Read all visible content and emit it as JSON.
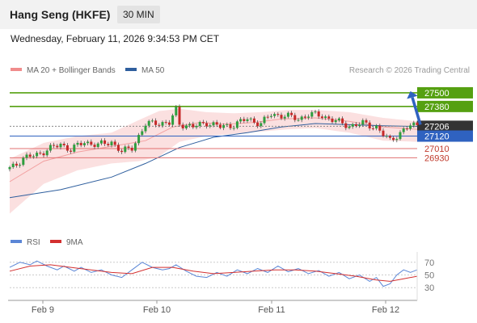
{
  "header": {
    "title": "Hang Seng (HKFE)",
    "interval": "30 MIN"
  },
  "datetime": "Wednesday, February 11, 2026 9:34:53 PM CET",
  "colors": {
    "support_resistance": "#55a011",
    "pivot": "#2f62c0",
    "support": "#e07070",
    "price_tag": "#333333",
    "arrow": "#2f62c0",
    "bullish": "#2e9e3e",
    "bearish": "#c62828",
    "bollinger": "#f7c6c6",
    "ma50": "#2f5f9e",
    "rsi": "#5b86d6",
    "rsi_ma": "#d32f2f"
  },
  "chart_data": {
    "type": "candlestick",
    "legend": [
      {
        "name": "MA 20 + Bollinger Bands",
        "color": "#f08c8c"
      },
      {
        "name": "MA 50",
        "color": "#2f5f9e"
      }
    ],
    "credit": "Research © 2026 Trading Central",
    "y_range": [
      26330,
      27620
    ],
    "x_ticks": [
      "Feb 9",
      "Feb 10",
      "Feb 11",
      "Feb 12"
    ],
    "levels": [
      {
        "label": "27500",
        "value": 27500,
        "kind": "resistance"
      },
      {
        "label": "27380",
        "value": 27380,
        "kind": "resistance"
      },
      {
        "label": "27206",
        "value": 27206,
        "kind": "last"
      },
      {
        "label": "27120",
        "value": 27120,
        "kind": "pivot"
      },
      {
        "label": "27010",
        "value": 27010,
        "kind": "support"
      },
      {
        "label": "26930",
        "value": 26930,
        "kind": "support"
      }
    ],
    "price_path": [
      [
        0,
        26840
      ],
      [
        4,
        26920
      ],
      [
        8,
        26960
      ],
      [
        12,
        27010
      ],
      [
        15,
        27050
      ],
      [
        18,
        27000
      ],
      [
        22,
        27070
      ],
      [
        26,
        27040
      ],
      [
        30,
        27070
      ],
      [
        33,
        26980
      ],
      [
        36,
        27020
      ],
      [
        40,
        27220
      ],
      [
        43,
        27240
      ],
      [
        47,
        27230
      ],
      [
        49,
        27350
      ],
      [
        50,
        27230
      ],
      [
        54,
        27200
      ],
      [
        58,
        27240
      ],
      [
        62,
        27200
      ],
      [
        66,
        27220
      ],
      [
        70,
        27270
      ],
      [
        74,
        27230
      ],
      [
        77,
        27310
      ],
      [
        81,
        27300
      ],
      [
        85,
        27270
      ],
      [
        88,
        27310
      ],
      [
        92,
        27300
      ],
      [
        96,
        27250
      ],
      [
        100,
        27210
      ],
      [
        104,
        27230
      ],
      [
        108,
        27200
      ],
      [
        110,
        27130
      ],
      [
        112,
        27080
      ],
      [
        115,
        27150
      ],
      [
        118,
        27210
      ],
      [
        120,
        27220
      ]
    ],
    "ma20": [
      [
        0,
        26720
      ],
      [
        10,
        26900
      ],
      [
        20,
        26980
      ],
      [
        30,
        27030
      ],
      [
        40,
        27080
      ],
      [
        48,
        27200
      ],
      [
        56,
        27240
      ],
      [
        64,
        27225
      ],
      [
        72,
        27240
      ],
      [
        80,
        27270
      ],
      [
        90,
        27280
      ],
      [
        100,
        27250
      ],
      [
        110,
        27200
      ],
      [
        120,
        27180
      ]
    ],
    "bollinger_upper": [
      [
        0,
        26920
      ],
      [
        10,
        27060
      ],
      [
        20,
        27120
      ],
      [
        30,
        27150
      ],
      [
        38,
        27260
      ],
      [
        44,
        27340
      ],
      [
        50,
        27360
      ],
      [
        58,
        27330
      ],
      [
        66,
        27320
      ],
      [
        74,
        27330
      ],
      [
        82,
        27350
      ],
      [
        90,
        27350
      ],
      [
        100,
        27330
      ],
      [
        110,
        27280
      ],
      [
        120,
        27250
      ]
    ],
    "bollinger_lower": [
      [
        0,
        26440
      ],
      [
        10,
        26700
      ],
      [
        20,
        26820
      ],
      [
        30,
        26880
      ],
      [
        38,
        26900
      ],
      [
        44,
        26940
      ],
      [
        50,
        27070
      ],
      [
        58,
        27120
      ],
      [
        66,
        27140
      ],
      [
        74,
        27160
      ],
      [
        82,
        27180
      ],
      [
        90,
        27190
      ],
      [
        100,
        27150
      ],
      [
        110,
        27080
      ],
      [
        120,
        27070
      ]
    ],
    "ma50": [
      [
        0,
        26580
      ],
      [
        15,
        26650
      ],
      [
        30,
        26760
      ],
      [
        40,
        26880
      ],
      [
        50,
        27020
      ],
      [
        60,
        27110
      ],
      [
        70,
        27150
      ],
      [
        80,
        27200
      ],
      [
        90,
        27230
      ],
      [
        100,
        27220
      ],
      [
        110,
        27210
      ],
      [
        120,
        27205
      ]
    ],
    "rsi_panel": {
      "legend": [
        {
          "name": "RSI",
          "color": "#5b86d6"
        },
        {
          "name": "9MA",
          "color": "#d32f2f"
        }
      ],
      "y_ticks": [
        "70",
        "50",
        "30"
      ],
      "y_range": [
        15,
        85
      ],
      "rsi": [
        [
          0,
          62
        ],
        [
          3,
          70
        ],
        [
          6,
          66
        ],
        [
          8,
          72
        ],
        [
          11,
          64
        ],
        [
          14,
          58
        ],
        [
          16,
          64
        ],
        [
          19,
          56
        ],
        [
          21,
          62
        ],
        [
          24,
          54
        ],
        [
          27,
          58
        ],
        [
          30,
          50
        ],
        [
          33,
          46
        ],
        [
          36,
          58
        ],
        [
          39,
          70
        ],
        [
          42,
          62
        ],
        [
          45,
          58
        ],
        [
          47,
          60
        ],
        [
          49,
          66
        ],
        [
          52,
          56
        ],
        [
          55,
          48
        ],
        [
          58,
          46
        ],
        [
          61,
          54
        ],
        [
          64,
          48
        ],
        [
          67,
          58
        ],
        [
          70,
          52
        ],
        [
          73,
          60
        ],
        [
          76,
          54
        ],
        [
          79,
          64
        ],
        [
          82,
          55
        ],
        [
          85,
          60
        ],
        [
          88,
          52
        ],
        [
          91,
          57
        ],
        [
          94,
          48
        ],
        [
          97,
          54
        ],
        [
          100,
          44
        ],
        [
          103,
          50
        ],
        [
          106,
          40
        ],
        [
          108,
          46
        ],
        [
          110,
          32
        ],
        [
          112,
          36
        ],
        [
          114,
          50
        ],
        [
          116,
          58
        ],
        [
          118,
          54
        ],
        [
          120,
          58
        ]
      ],
      "ma9": [
        [
          0,
          56
        ],
        [
          6,
          64
        ],
        [
          12,
          66
        ],
        [
          18,
          62
        ],
        [
          24,
          58
        ],
        [
          30,
          54
        ],
        [
          36,
          52
        ],
        [
          42,
          62
        ],
        [
          48,
          62
        ],
        [
          54,
          56
        ],
        [
          60,
          52
        ],
        [
          66,
          54
        ],
        [
          72,
          56
        ],
        [
          78,
          58
        ],
        [
          84,
          58
        ],
        [
          90,
          56
        ],
        [
          96,
          52
        ],
        [
          102,
          48
        ],
        [
          108,
          42
        ],
        [
          112,
          40
        ],
        [
          116,
          44
        ],
        [
          120,
          48
        ]
      ]
    }
  }
}
